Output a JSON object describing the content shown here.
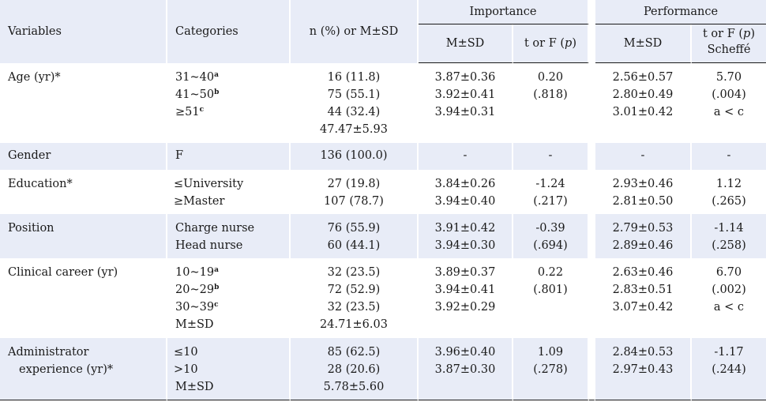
{
  "header": {
    "variables": "Variables",
    "categories": "Categories",
    "n_col": "n (%) or M±SD",
    "importance": "Importance",
    "performance": "Performance",
    "msd": "M±SD",
    "t_or_f_p": "t or F (p)",
    "t_or_f_p_scheffe_1": "t or F (p)",
    "t_or_f_p_scheffe_2": "Scheffé"
  },
  "rows": [
    {
      "variable": "Age (yr)*",
      "categories": [
        "31~40",
        "41~50",
        "≥51",
        ""
      ],
      "sups": [
        "a",
        "b",
        "c"
      ],
      "n": [
        "16 (11.8)",
        "75 (55.1)",
        "44 (32.4)",
        "47.47±5.93"
      ],
      "imp_msd": [
        "3.87±0.36",
        "3.92±0.41",
        "3.94±0.31"
      ],
      "imp_t": [
        "0.20",
        "(.818)"
      ],
      "perf_msd": [
        "2.56±0.57",
        "2.80±0.49",
        "3.01±0.42"
      ],
      "perf_t": [
        "5.70",
        "(.004)",
        "a < c"
      ]
    },
    {
      "variable": "Gender",
      "categories": [
        "F"
      ],
      "n": [
        "136 (100.0)"
      ],
      "imp_msd": [
        "-"
      ],
      "imp_t": [
        "-"
      ],
      "perf_msd": [
        "-"
      ],
      "perf_t": [
        "-"
      ]
    },
    {
      "variable": "Education*",
      "categories": [
        "≤University",
        "≥Master"
      ],
      "n": [
        "27 (19.8)",
        "107 (78.7)"
      ],
      "imp_msd": [
        "3.84±0.26",
        "3.94±0.40"
      ],
      "imp_t": [
        "-1.24",
        "(.217)"
      ],
      "perf_msd": [
        "2.93±0.46",
        "2.81±0.50"
      ],
      "perf_t": [
        "1.12",
        "(.265)"
      ]
    },
    {
      "variable": "Position",
      "categories": [
        "Charge nurse",
        "Head nurse"
      ],
      "n": [
        "76 (55.9)",
        "60 (44.1)"
      ],
      "imp_msd": [
        "3.91±0.42",
        "3.94±0.30"
      ],
      "imp_t": [
        "-0.39",
        "(.694)"
      ],
      "perf_msd": [
        "2.79±0.53",
        "2.89±0.46"
      ],
      "perf_t": [
        "-1.14",
        "(.258)"
      ]
    },
    {
      "variable": "Clinical career (yr)",
      "categories": [
        "10~19",
        "20~29",
        "30~39",
        "M±SD"
      ],
      "sups": [
        "a",
        "b",
        "c"
      ],
      "n": [
        "32 (23.5)",
        "72 (52.9)",
        "32 (23.5)",
        "24.71±6.03"
      ],
      "imp_msd": [
        "3.89±0.37",
        "3.94±0.41",
        "3.92±0.29"
      ],
      "imp_t": [
        "0.22",
        "(.801)"
      ],
      "perf_msd": [
        "2.63±0.46",
        "2.83±0.51",
        "3.07±0.42"
      ],
      "perf_t": [
        "6.70",
        "(.002)",
        "a < c"
      ]
    },
    {
      "variable_1": "Administrator",
      "variable_2": "experience (yr)*",
      "categories": [
        "≤10",
        ">10",
        "M±SD"
      ],
      "n": [
        "85 (62.5)",
        "28 (20.6)",
        "5.78±5.60"
      ],
      "imp_msd": [
        "3.96±0.40",
        "3.87±0.30"
      ],
      "imp_t": [
        "1.09",
        "(.278)"
      ],
      "perf_msd": [
        "2.84±0.53",
        "2.97±0.43"
      ],
      "perf_t": [
        "-1.17",
        "(.244)"
      ]
    }
  ]
}
